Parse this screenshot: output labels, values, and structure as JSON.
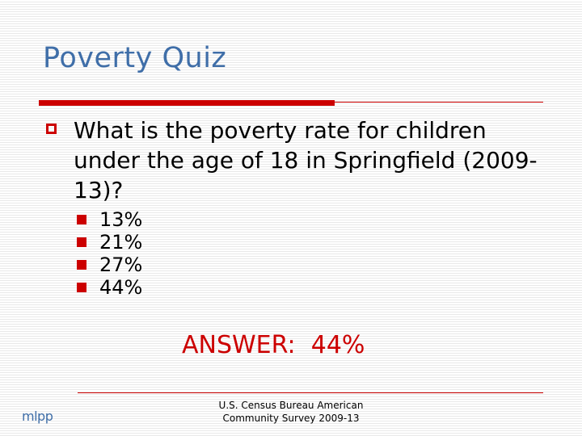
{
  "slide": {
    "title": "Poverty Quiz",
    "question": "What is the poverty rate for children under the age of 18 in Springfield (2009-13)?",
    "options": [
      "13%",
      "21%",
      "27%",
      "44%"
    ],
    "answer": "ANSWER:  44%",
    "source_line1": "U.S. Census Bureau American",
    "source_line2": "Community Survey 2009-13",
    "logo_text": "mlpp"
  },
  "colors": {
    "title": "#3f6ea8",
    "accent_red": "#cc0000",
    "text": "#000000"
  }
}
